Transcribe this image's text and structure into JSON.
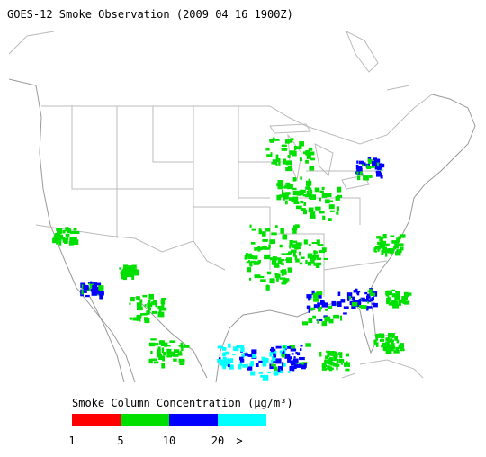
{
  "header": {
    "title": "GOES-12 Smoke Observation (2009 04 16  1900Z)"
  },
  "legend": {
    "title": "Smoke Column Concentration (µg/m³)",
    "colors": [
      "#ff0000",
      "#00e000",
      "#0000ff",
      "#00ffff"
    ],
    "ticks": [
      1,
      5,
      10,
      20
    ],
    "overflow_label": ">"
  }
}
